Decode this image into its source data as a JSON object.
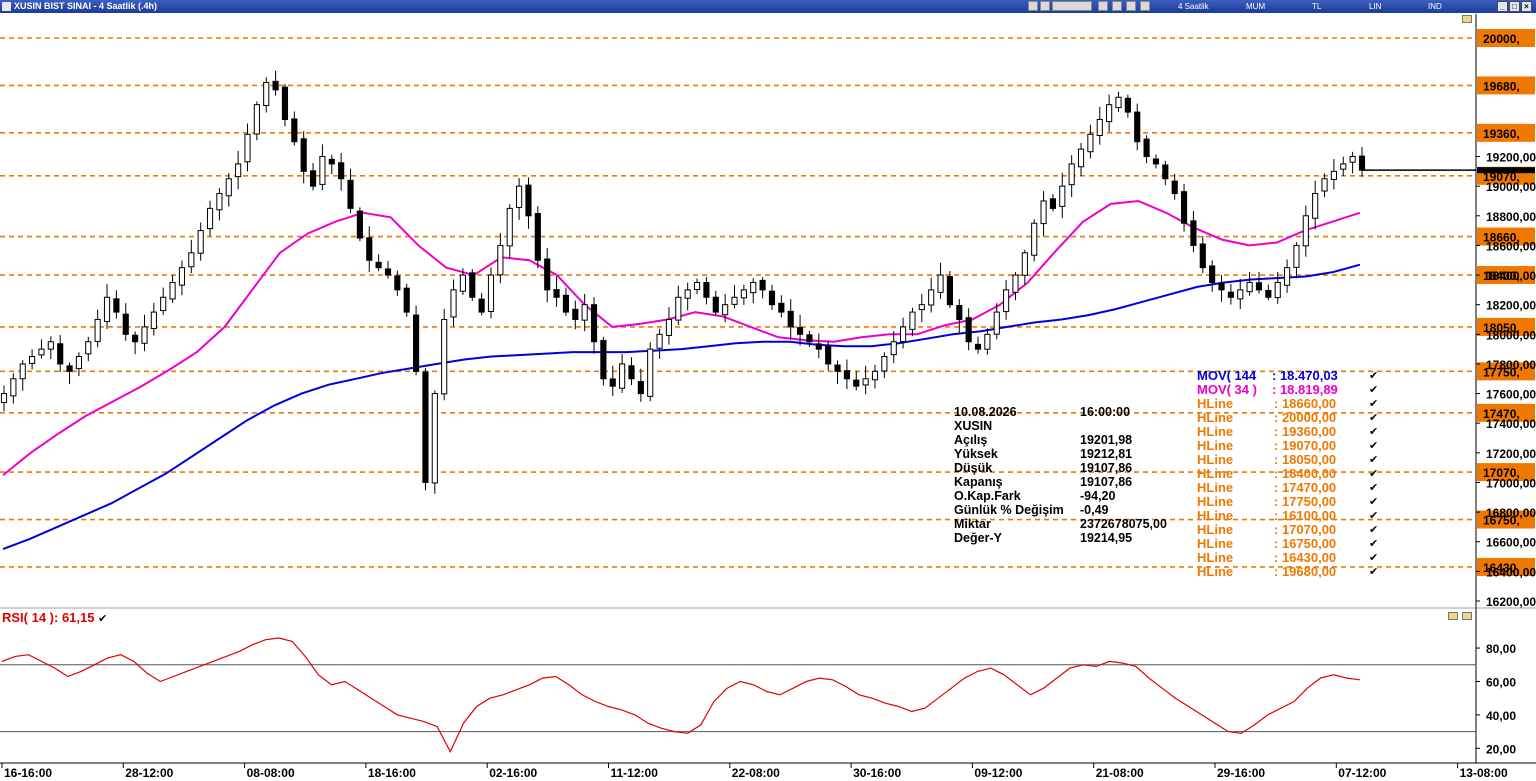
{
  "window": {
    "title": "XUSIN BIST SINAI - 4 Saatlik (.4h)",
    "toolbar": {
      "period": "4 Saatlik",
      "type": "MUM",
      "currency": "TL",
      "scale": "LIN",
      "indicator": "IND"
    },
    "controls": [
      "_",
      "□",
      "×"
    ]
  },
  "info_box": {
    "date": "10.08.2026",
    "time": "16:00:00",
    "symbol": "XUSIN",
    "rows": [
      {
        "label": "Açılış",
        "value": "19201,98"
      },
      {
        "label": "Yüksek",
        "value": "19212,81"
      },
      {
        "label": "Düşük",
        "value": "19107,86"
      },
      {
        "label": "Kapanış",
        "value": "19107,86"
      },
      {
        "label": "O.Kap.Fark",
        "value": "-94,20"
      },
      {
        "label": "Günlük % Değişim",
        "value": "-0,49"
      },
      {
        "label": "Miktar",
        "value": "2372678075,00"
      },
      {
        "label": "Değer-Y",
        "value": "19214,95"
      }
    ]
  },
  "legend": [
    {
      "name": "MOV( 144",
      "value": ": 18.470,03",
      "color": "#0000dd"
    },
    {
      "name": "MOV( 34 )",
      "value": ": 18.819,89",
      "color": "#ee00cc"
    },
    {
      "name": "HLine",
      "value": ": 18660,00",
      "color": "#f07800"
    },
    {
      "name": "HLine",
      "value": ": 20000,00",
      "color": "#f07800"
    },
    {
      "name": "HLine",
      "value": ": 19360,00",
      "color": "#f07800"
    },
    {
      "name": "HLine",
      "value": ": 19070,00",
      "color": "#f07800"
    },
    {
      "name": "HLine",
      "value": ": 18050,00",
      "color": "#f07800"
    },
    {
      "name": "HLine",
      "value": ": 18400,00",
      "color": "#f07800"
    },
    {
      "name": "HLine",
      "value": ": 17470,00",
      "color": "#f07800"
    },
    {
      "name": "HLine",
      "value": ": 17750,00",
      "color": "#f07800"
    },
    {
      "name": "HLine",
      "value": ": 16100,00",
      "color": "#f07800"
    },
    {
      "name": "HLine",
      "value": ": 17070,00",
      "color": "#f07800"
    },
    {
      "name": "HLine",
      "value": ": 16750,00",
      "color": "#f07800"
    },
    {
      "name": "HLine",
      "value": ": 16430,00",
      "color": "#f07800"
    },
    {
      "name": "HLine",
      "value": ": 19680,00",
      "color": "#f07800"
    }
  ],
  "rsi_label": "RSI( 14 ): 61,15",
  "chart_data": [
    {
      "type": "candlestick",
      "title": "XUSIN BIST SINAI - 4 Saatlik (.4h)",
      "y_ticks": [
        "16200,00",
        "16400,00",
        "16600,00",
        "16800,00",
        "17000,00",
        "17200,00",
        "17400,00",
        "17600,00",
        "17800,00",
        "18000,00",
        "18200,00",
        "18400,00",
        "18600,00",
        "18800,00",
        "19000,00",
        "19200,00"
      ],
      "y_range": [
        16200,
        20000
      ],
      "x_ticks": [
        "16-16:00",
        "28-12:00",
        "08-08:00",
        "18-16:00",
        "02-16:00",
        "11-12:00",
        "22-08:00",
        "30-16:00",
        "09-12:00",
        "21-08:00",
        "29-16:00",
        "07-12:00",
        "13-08:00"
      ],
      "hlines": [
        {
          "value": 20000,
          "label": "20000,"
        },
        {
          "value": 19680,
          "label": "19680,"
        },
        {
          "value": 19360,
          "label": "19360,"
        },
        {
          "value": 19070,
          "label": "19070,"
        },
        {
          "value": 18660,
          "label": "18660,"
        },
        {
          "value": 18400,
          "label": "18400,"
        },
        {
          "value": 18050,
          "label": "18050,"
        },
        {
          "value": 17750,
          "label": "17750,"
        },
        {
          "value": 17470,
          "label": "17470,"
        },
        {
          "value": 17070,
          "label": "17070,"
        },
        {
          "value": 16750,
          "label": "16750,"
        },
        {
          "value": 16430,
          "label": "16430,"
        }
      ],
      "last_price": 19107.86,
      "close_path": [
        17600,
        17700,
        17800,
        17850,
        17900,
        17950,
        17800,
        17750,
        17850,
        17950,
        18100,
        18250,
        18150,
        18000,
        17950,
        18050,
        18150,
        18250,
        18350,
        18450,
        18550,
        18700,
        18850,
        18950,
        19050,
        19150,
        19350,
        19550,
        19700,
        19650,
        19450,
        19300,
        19100,
        19000,
        19200,
        19150,
        19050,
        18850,
        18650,
        18500,
        18450,
        18400,
        18300,
        18150,
        17750,
        17000,
        17600,
        18100,
        18300,
        18400,
        18250,
        18150,
        18400,
        18600,
        18850,
        19000,
        18800,
        18500,
        18300,
        18250,
        18150,
        18100,
        18200,
        17950,
        17700,
        17650,
        17800,
        17700,
        17600,
        17900,
        18000,
        18100,
        18250,
        18300,
        18350,
        18250,
        18150,
        18200,
        18250,
        18300,
        18350,
        18300,
        18200,
        18150,
        18050,
        18000,
        17950,
        17900,
        17800,
        17750,
        17700,
        17650,
        17700,
        17750,
        17850,
        17950,
        18050,
        18150,
        18200,
        18300,
        18400,
        18200,
        18100,
        17950,
        17900,
        18000,
        18150,
        18300,
        18400,
        18550,
        18750,
        18900,
        18850,
        19000,
        19150,
        19250,
        19350,
        19450,
        19550,
        19600,
        19500,
        19300,
        19200,
        19150,
        19050,
        18950,
        18750,
        18600,
        18450,
        18350,
        18300,
        18250,
        18300,
        18350,
        18300,
        18250,
        18350,
        18450,
        18600,
        18800,
        18950,
        19050,
        19100,
        19150,
        19200,
        19107.86
      ],
      "series": [
        {
          "name": "MOV( 144",
          "color": "#0000dd",
          "last": 18470.03,
          "values": [
            16550,
            16620,
            16700,
            16780,
            16860,
            16960,
            17060,
            17180,
            17300,
            17420,
            17520,
            17600,
            17660,
            17700,
            17740,
            17770,
            17800,
            17830,
            17850,
            17860,
            17870,
            17880,
            17880,
            17880,
            17890,
            17900,
            17920,
            17940,
            17950,
            17950,
            17930,
            17920,
            17920,
            17940,
            17970,
            18000,
            18020,
            18050,
            18080,
            18100,
            18130,
            18170,
            18220,
            18270,
            18320,
            18350,
            18370,
            18380,
            18390,
            18420,
            18470
          ]
        },
        {
          "name": "MOV( 34 )",
          "color": "#ee00cc",
          "last": 18819.89,
          "values": [
            17050,
            17200,
            17330,
            17450,
            17550,
            17650,
            17760,
            17880,
            18050,
            18300,
            18550,
            18680,
            18760,
            18820,
            18790,
            18600,
            18450,
            18400,
            18520,
            18500,
            18400,
            18200,
            18050,
            18070,
            18100,
            18150,
            18120,
            18050,
            17980,
            17960,
            17950,
            17980,
            18000,
            18000,
            18060,
            18100,
            18200,
            18350,
            18560,
            18760,
            18880,
            18900,
            18820,
            18720,
            18640,
            18600,
            18620,
            18700,
            18760,
            18820
          ]
        }
      ]
    },
    {
      "type": "line",
      "title": "RSI( 14 ): 61,15",
      "y_ticks": [
        "20,00",
        "40,00",
        "60,00",
        "80,00"
      ],
      "y_range": [
        10,
        95
      ],
      "ref_lines": [
        70,
        30
      ],
      "series": [
        {
          "name": "RSI( 14 )",
          "color": "#e00000",
          "last": 61.15,
          "values": [
            72,
            75,
            76,
            72,
            68,
            63,
            66,
            70,
            74,
            76,
            72,
            65,
            60,
            63,
            66,
            69,
            72,
            75,
            78,
            82,
            85,
            86,
            84,
            75,
            64,
            58,
            60,
            55,
            50,
            45,
            40,
            38,
            36,
            33,
            18,
            35,
            45,
            50,
            52,
            55,
            58,
            62,
            63,
            58,
            52,
            48,
            45,
            43,
            40,
            35,
            32,
            30,
            29,
            34,
            48,
            56,
            60,
            58,
            54,
            52,
            56,
            60,
            62,
            61,
            57,
            52,
            50,
            47,
            45,
            42,
            44,
            50,
            56,
            62,
            66,
            68,
            64,
            58,
            52,
            56,
            62,
            68,
            70,
            69,
            72,
            71,
            69,
            62,
            56,
            50,
            45,
            40,
            35,
            30,
            29,
            34,
            40,
            44,
            48,
            56,
            62,
            64,
            62,
            61
          ]
        }
      ]
    }
  ]
}
